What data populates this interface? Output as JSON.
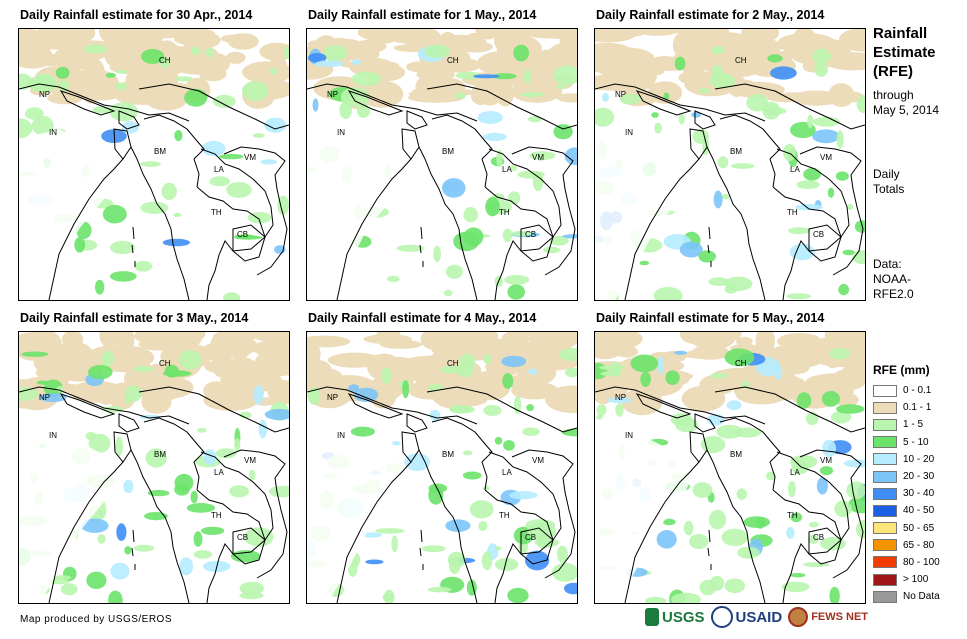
{
  "panels": [
    {
      "title": "Daily Rainfall estimate for 30 Apr., 2014"
    },
    {
      "title": "Daily Rainfall estimate for 1 May., 2014"
    },
    {
      "title": "Daily Rainfall estimate for 2 May., 2014"
    },
    {
      "title": "Daily Rainfall estimate for 3 May., 2014"
    },
    {
      "title": "Daily Rainfall estimate for 4 May., 2014"
    },
    {
      "title": "Daily Rainfall estimate for 5 May., 2014"
    }
  ],
  "map_labels": {
    "ch": "CH",
    "np": "NP",
    "in": "IN",
    "bm": "BM",
    "la": "LA",
    "vm": "VM",
    "th": "TH",
    "cb": "CB"
  },
  "sidebar": {
    "title_line1": "Rainfall",
    "title_line2": "Estimate",
    "title_line3": "(RFE)",
    "through": "through",
    "through_date": "May 5, 2014",
    "daily": "Daily",
    "totals": "Totals",
    "data_label": "Data:",
    "data_src1": "NOAA-",
    "data_src2": "RFE2.0"
  },
  "legend": {
    "title": "RFE (mm)",
    "items": [
      {
        "label": "0 - 0.1",
        "color": "#ffffff"
      },
      {
        "label": "0.1 - 1",
        "color": "#eddcb9"
      },
      {
        "label": "1 - 5",
        "color": "#b9f5ae"
      },
      {
        "label": "5 - 10",
        "color": "#6ce36a"
      },
      {
        "label": "10 - 20",
        "color": "#b5ecff"
      },
      {
        "label": "20 - 30",
        "color": "#7bc4f8"
      },
      {
        "label": "30 - 40",
        "color": "#3f8ef5"
      },
      {
        "label": "40 - 50",
        "color": "#1d5fe3"
      },
      {
        "label": "50 - 65",
        "color": "#fbe57a"
      },
      {
        "label": "65 - 80",
        "color": "#f59400"
      },
      {
        "label": "80 - 100",
        "color": "#f23b00"
      },
      {
        "label": "> 100",
        "color": "#a01515"
      },
      {
        "label": "No Data",
        "color": "#999999"
      }
    ]
  },
  "footer": {
    "credit": "Map produced by USGS/EROS"
  },
  "logos": {
    "usgs": "USGS",
    "usaid": "USAID",
    "fewsnet": "FEWS NET"
  }
}
